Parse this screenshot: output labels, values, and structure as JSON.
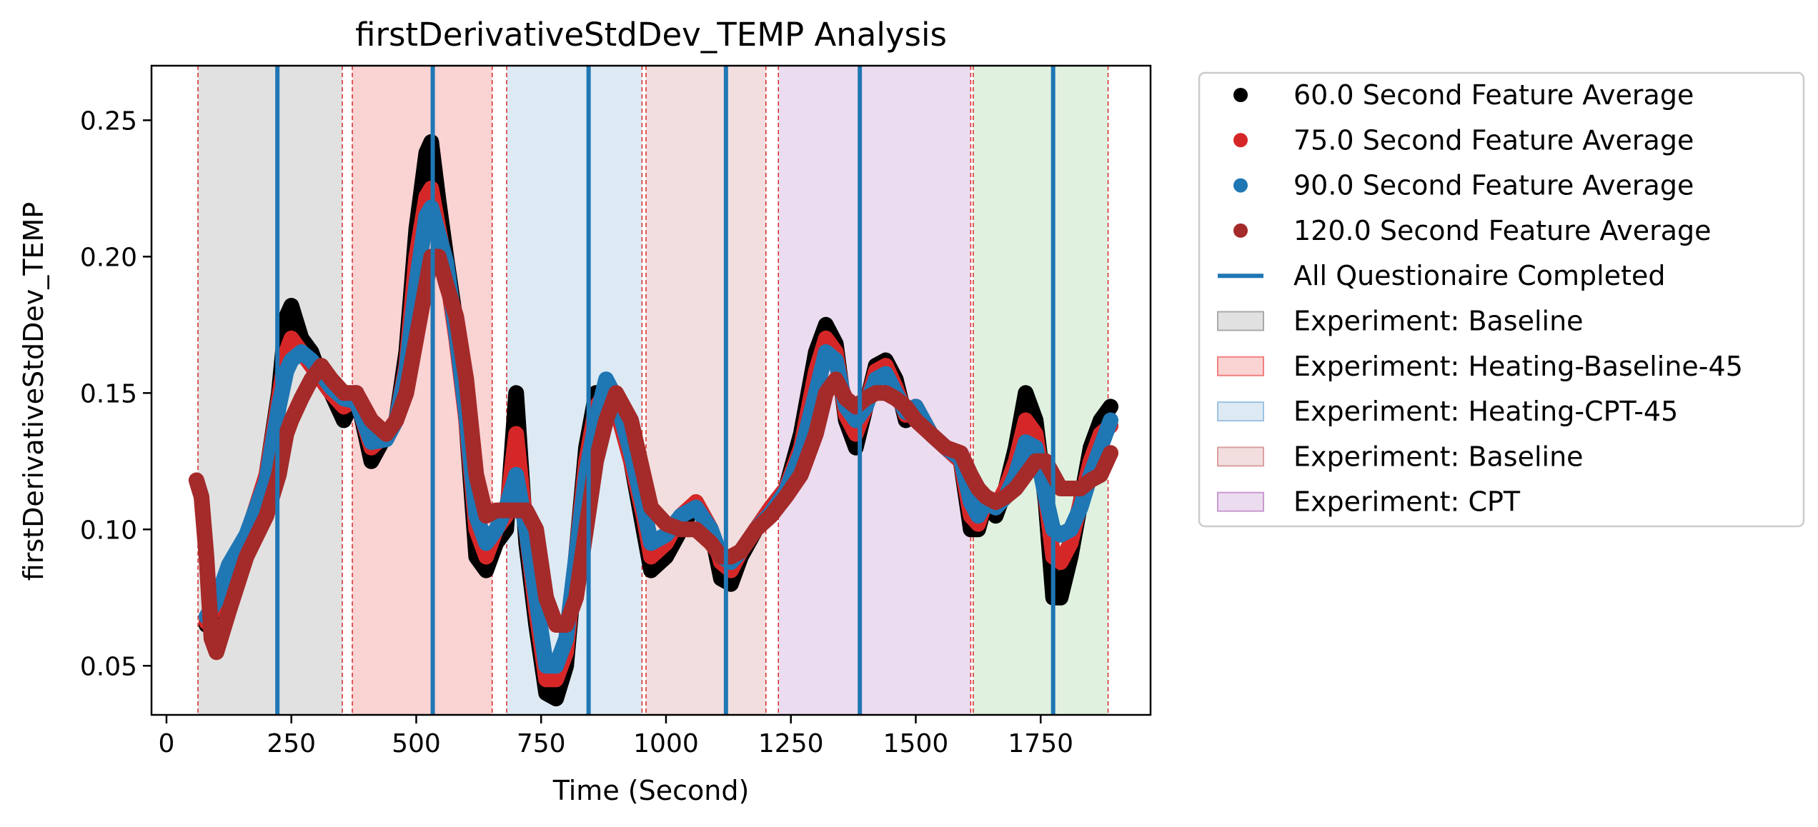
{
  "chart_data": {
    "type": "line",
    "title": "firstDerivativeStdDev_TEMP Analysis",
    "xlabel": "Time (Second)",
    "ylabel": "firstDerivativeStdDev_TEMP",
    "xlim": [
      -30,
      1970
    ],
    "ylim": [
      0.032,
      0.27
    ],
    "x_ticks": [
      0,
      250,
      500,
      750,
      1000,
      1250,
      1500,
      1750
    ],
    "y_ticks": [
      0.05,
      0.1,
      0.15,
      0.2,
      0.25
    ],
    "x_tick_labels": [
      "0",
      "250",
      "500",
      "750",
      "1000",
      "1250",
      "1500",
      "1750"
    ],
    "y_tick_labels": [
      "0.05",
      "0.10",
      "0.15",
      "0.20",
      "0.25"
    ],
    "grid": false,
    "legend_position": "outside-right",
    "series": [
      {
        "name": "60.0 Second Feature Average",
        "color": "#000000",
        "x": [
          80,
          100,
          125,
          160,
          200,
          225,
          240,
          250,
          270,
          290,
          310,
          330,
          355,
          380,
          410,
          440,
          460,
          480,
          500,
          520,
          530,
          545,
          560,
          580,
          600,
          620,
          640,
          660,
          680,
          700,
          720,
          740,
          760,
          780,
          800,
          820,
          840,
          860,
          880,
          900,
          930,
          955,
          970,
          1000,
          1030,
          1060,
          1090,
          1110,
          1130,
          1150,
          1180,
          1210,
          1240,
          1270,
          1300,
          1320,
          1340,
          1360,
          1380,
          1400,
          1420,
          1440,
          1460,
          1480,
          1500,
          1530,
          1560,
          1590,
          1610,
          1625,
          1640,
          1660,
          1680,
          1700,
          1720,
          1740,
          1760,
          1775,
          1790,
          1810,
          1830,
          1850,
          1870,
          1890
        ],
        "y": [
          0.065,
          0.07,
          0.085,
          0.095,
          0.12,
          0.15,
          0.178,
          0.182,
          0.17,
          0.165,
          0.155,
          0.15,
          0.14,
          0.15,
          0.125,
          0.135,
          0.14,
          0.165,
          0.21,
          0.238,
          0.242,
          0.22,
          0.2,
          0.175,
          0.14,
          0.09,
          0.085,
          0.095,
          0.1,
          0.15,
          0.095,
          0.065,
          0.04,
          0.038,
          0.05,
          0.09,
          0.13,
          0.15,
          0.15,
          0.145,
          0.125,
          0.1,
          0.085,
          0.09,
          0.1,
          0.11,
          0.1,
          0.082,
          0.08,
          0.09,
          0.1,
          0.108,
          0.115,
          0.135,
          0.165,
          0.175,
          0.168,
          0.14,
          0.13,
          0.145,
          0.16,
          0.162,
          0.155,
          0.14,
          0.145,
          0.135,
          0.13,
          0.125,
          0.1,
          0.1,
          0.11,
          0.105,
          0.115,
          0.13,
          0.15,
          0.14,
          0.11,
          0.075,
          0.075,
          0.09,
          0.11,
          0.13,
          0.14,
          0.145
        ]
      },
      {
        "name": "75.0 Second Feature Average",
        "color": "#d62728",
        "x": [
          80,
          100,
          125,
          160,
          200,
          225,
          240,
          250,
          270,
          290,
          310,
          330,
          355,
          380,
          410,
          440,
          460,
          480,
          500,
          520,
          530,
          545,
          560,
          580,
          600,
          620,
          640,
          660,
          680,
          700,
          720,
          740,
          760,
          780,
          800,
          820,
          840,
          860,
          880,
          900,
          930,
          955,
          970,
          1000,
          1030,
          1060,
          1090,
          1110,
          1130,
          1150,
          1180,
          1210,
          1240,
          1270,
          1300,
          1320,
          1340,
          1360,
          1380,
          1400,
          1420,
          1440,
          1460,
          1480,
          1500,
          1530,
          1560,
          1590,
          1610,
          1625,
          1640,
          1660,
          1680,
          1700,
          1720,
          1740,
          1760,
          1775,
          1790,
          1810,
          1830,
          1850,
          1870,
          1890
        ],
        "y": [
          0.066,
          0.072,
          0.086,
          0.097,
          0.12,
          0.148,
          0.165,
          0.17,
          0.165,
          0.16,
          0.155,
          0.15,
          0.145,
          0.148,
          0.13,
          0.135,
          0.14,
          0.16,
          0.2,
          0.222,
          0.225,
          0.21,
          0.195,
          0.17,
          0.14,
          0.1,
          0.09,
          0.1,
          0.105,
          0.135,
          0.1,
          0.07,
          0.045,
          0.045,
          0.055,
          0.09,
          0.125,
          0.145,
          0.15,
          0.145,
          0.125,
          0.105,
          0.09,
          0.095,
          0.105,
          0.11,
          0.1,
          0.088,
          0.085,
          0.092,
          0.1,
          0.108,
          0.115,
          0.13,
          0.158,
          0.17,
          0.165,
          0.142,
          0.135,
          0.145,
          0.158,
          0.16,
          0.152,
          0.142,
          0.145,
          0.135,
          0.13,
          0.125,
          0.105,
          0.102,
          0.11,
          0.108,
          0.115,
          0.125,
          0.14,
          0.135,
          0.112,
          0.09,
          0.088,
          0.095,
          0.11,
          0.125,
          0.135,
          0.138
        ]
      },
      {
        "name": "90.0 Second Feature Average",
        "color": "#1f77b4",
        "x": [
          80,
          100,
          125,
          160,
          200,
          225,
          240,
          250,
          270,
          290,
          310,
          330,
          355,
          380,
          410,
          440,
          460,
          480,
          500,
          520,
          530,
          545,
          560,
          580,
          600,
          620,
          640,
          660,
          680,
          700,
          720,
          740,
          760,
          780,
          800,
          820,
          840,
          860,
          880,
          900,
          930,
          955,
          970,
          1000,
          1030,
          1060,
          1090,
          1110,
          1130,
          1150,
          1180,
          1210,
          1240,
          1270,
          1300,
          1320,
          1340,
          1360,
          1380,
          1400,
          1420,
          1440,
          1460,
          1480,
          1500,
          1530,
          1560,
          1590,
          1610,
          1625,
          1640,
          1660,
          1680,
          1700,
          1720,
          1740,
          1760,
          1775,
          1790,
          1810,
          1830,
          1850,
          1870,
          1890
        ],
        "y": [
          0.068,
          0.074,
          0.087,
          0.098,
          0.118,
          0.145,
          0.158,
          0.162,
          0.165,
          0.162,
          0.157,
          0.152,
          0.148,
          0.147,
          0.132,
          0.133,
          0.14,
          0.158,
          0.19,
          0.215,
          0.218,
          0.208,
          0.198,
          0.172,
          0.142,
          0.105,
          0.095,
          0.1,
          0.108,
          0.12,
          0.1,
          0.075,
          0.05,
          0.05,
          0.06,
          0.09,
          0.12,
          0.14,
          0.155,
          0.148,
          0.128,
          0.108,
          0.095,
          0.098,
          0.105,
          0.108,
          0.1,
          0.09,
          0.088,
          0.092,
          0.1,
          0.106,
          0.114,
          0.128,
          0.15,
          0.165,
          0.162,
          0.145,
          0.14,
          0.145,
          0.155,
          0.157,
          0.15,
          0.143,
          0.145,
          0.135,
          0.13,
          0.126,
          0.11,
          0.105,
          0.11,
          0.108,
          0.112,
          0.12,
          0.132,
          0.13,
          0.112,
          0.1,
          0.098,
          0.1,
          0.108,
          0.12,
          0.13,
          0.14
        ]
      },
      {
        "name": "120.0 Second Feature Average",
        "color": "#a52a2a",
        "x": [
          60,
          70,
          80,
          90,
          100,
          125,
          160,
          200,
          225,
          240,
          250,
          270,
          290,
          310,
          330,
          355,
          380,
          410,
          440,
          460,
          480,
          500,
          520,
          530,
          545,
          560,
          580,
          600,
          620,
          640,
          660,
          680,
          700,
          720,
          740,
          760,
          780,
          800,
          820,
          840,
          860,
          880,
          900,
          930,
          955,
          970,
          1000,
          1030,
          1060,
          1090,
          1110,
          1130,
          1150,
          1180,
          1210,
          1240,
          1270,
          1300,
          1320,
          1340,
          1360,
          1380,
          1400,
          1420,
          1440,
          1460,
          1480,
          1500,
          1530,
          1560,
          1590,
          1610,
          1625,
          1640,
          1660,
          1680,
          1700,
          1720,
          1740,
          1760,
          1775,
          1790,
          1810,
          1830,
          1850,
          1870,
          1890
        ],
        "y": [
          0.118,
          0.112,
          0.09,
          0.06,
          0.055,
          0.07,
          0.09,
          0.105,
          0.12,
          0.135,
          0.14,
          0.148,
          0.155,
          0.16,
          0.155,
          0.15,
          0.15,
          0.14,
          0.135,
          0.14,
          0.15,
          0.17,
          0.19,
          0.2,
          0.2,
          0.19,
          0.178,
          0.155,
          0.12,
          0.105,
          0.107,
          0.107,
          0.107,
          0.107,
          0.1,
          0.075,
          0.065,
          0.065,
          0.075,
          0.1,
          0.125,
          0.14,
          0.15,
          0.14,
          0.12,
          0.108,
          0.102,
          0.1,
          0.1,
          0.095,
          0.09,
          0.09,
          0.092,
          0.1,
          0.105,
          0.112,
          0.12,
          0.135,
          0.15,
          0.155,
          0.148,
          0.145,
          0.148,
          0.15,
          0.15,
          0.148,
          0.145,
          0.14,
          0.135,
          0.13,
          0.128,
          0.12,
          0.115,
          0.112,
          0.11,
          0.112,
          0.115,
          0.12,
          0.125,
          0.125,
          0.12,
          0.115,
          0.115,
          0.115,
          0.118,
          0.12,
          0.128
        ]
      }
    ],
    "questionnaire_lines": {
      "name": "All Questionaire Completed",
      "color": "#1f77b4",
      "x": [
        222,
        533,
        845,
        1120,
        1388,
        1775
      ]
    },
    "regions": [
      {
        "label": "Experiment: Baseline",
        "color": "#a9a9a9",
        "start": 63,
        "end": 352
      },
      {
        "label": "Experiment: Heating-Baseline-45",
        "color": "#f08080",
        "start": 372,
        "end": 652
      },
      {
        "label": "Experiment: Heating-CPT-45",
        "color": "#9ec2e0",
        "start": 681,
        "end": 952
      },
      {
        "label": "Experiment: Baseline",
        "color": "#d9a0a0",
        "start": 960,
        "end": 1200
      },
      {
        "label": "Experiment: CPT",
        "color": "#c99ad0",
        "start": 1225,
        "end": 1610
      },
      {
        "label": "",
        "color": "#a6d8a6",
        "start": 1615,
        "end": 1885
      }
    ],
    "region_boundaries": [
      63,
      352,
      372,
      652,
      681,
      952,
      960,
      1200,
      1225,
      1610,
      1615,
      1885
    ],
    "legend_entries": [
      {
        "label": "60.0 Second Feature Average",
        "kind": "marker",
        "color": "#000000"
      },
      {
        "label": "75.0 Second Feature Average",
        "kind": "marker",
        "color": "#d62728"
      },
      {
        "label": "90.0 Second Feature Average",
        "kind": "marker",
        "color": "#1f77b4"
      },
      {
        "label": "120.0 Second Feature Average",
        "kind": "marker",
        "color": "#a52a2a"
      },
      {
        "label": "All Questionaire Completed",
        "kind": "line",
        "color": "#1f77b4"
      },
      {
        "label": "Experiment: Baseline",
        "kind": "patch",
        "color": "#a9a9a9"
      },
      {
        "label": "Experiment: Heating-Baseline-45",
        "kind": "patch",
        "color": "#f08080"
      },
      {
        "label": "Experiment: Heating-CPT-45",
        "kind": "patch",
        "color": "#9ec2e0"
      },
      {
        "label": "Experiment: Baseline",
        "kind": "patch",
        "color": "#d9a0a0"
      },
      {
        "label": "Experiment: CPT",
        "kind": "patch",
        "color": "#c99ad0"
      }
    ]
  }
}
